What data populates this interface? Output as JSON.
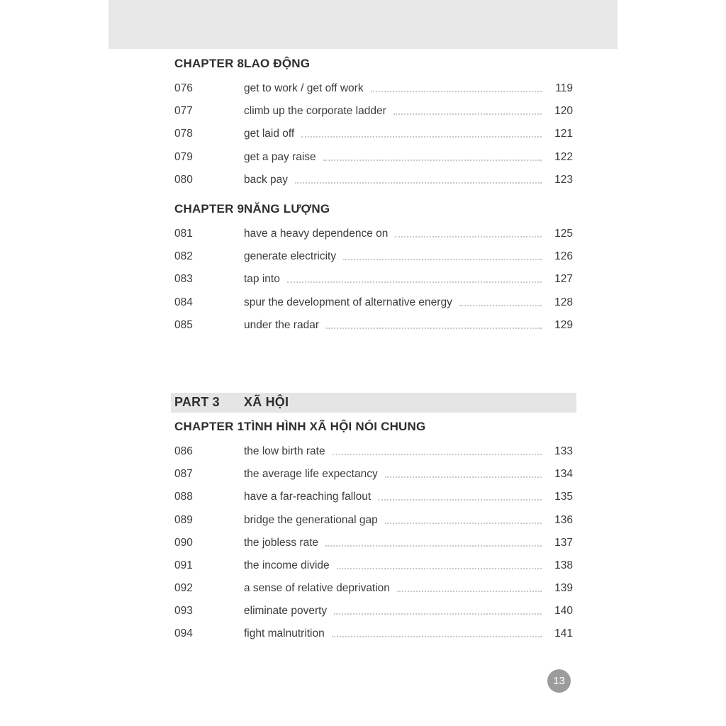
{
  "page": {
    "page_number_badge": "13"
  },
  "colors": {
    "header_block": "#e7e7e7",
    "part_band": "#e5e5e5",
    "badge_circle": "#9c9c9c",
    "body_text": "#3c3c3c",
    "leader_dots": "#c8c8c8"
  },
  "sections": [
    {
      "kind": "chapter",
      "label": "CHAPTER 8",
      "title": "LAO ĐỘNG",
      "items": [
        {
          "num": "076",
          "phrase": "get to work / get off work",
          "page": "119"
        },
        {
          "num": "077",
          "phrase": "climb up the corporate ladder",
          "page": "120"
        },
        {
          "num": "078",
          "phrase": "get laid off",
          "page": "121"
        },
        {
          "num": "079",
          "phrase": "get a pay raise",
          "page": "122"
        },
        {
          "num": "080",
          "phrase": "back pay",
          "page": "123"
        }
      ]
    },
    {
      "kind": "chapter",
      "label": "CHAPTER 9",
      "title": "NĂNG LƯỢNG",
      "items": [
        {
          "num": "081",
          "phrase": "have a heavy dependence on",
          "page": "125"
        },
        {
          "num": "082",
          "phrase": "generate electricity",
          "page": "126"
        },
        {
          "num": "083",
          "phrase": "tap into",
          "page": "127"
        },
        {
          "num": "084",
          "phrase": "spur the development of alternative energy",
          "page": "128"
        },
        {
          "num": "085",
          "phrase": "under the radar",
          "page": "129"
        }
      ]
    },
    {
      "kind": "part",
      "label": "PART 3",
      "title": "XÃ HỘI",
      "items": []
    },
    {
      "kind": "chapter",
      "label": "CHAPTER 1",
      "title": "TÌNH HÌNH XÃ HỘI NÓI CHUNG",
      "items": [
        {
          "num": "086",
          "phrase": "the low birth rate",
          "page": "133"
        },
        {
          "num": "087",
          "phrase": "the average life expectancy",
          "page": "134"
        },
        {
          "num": "088",
          "phrase": "have a far-reaching fallout",
          "page": "135"
        },
        {
          "num": "089",
          "phrase": "bridge the generational gap",
          "page": "136"
        },
        {
          "num": "090",
          "phrase": "the jobless rate",
          "page": "137"
        },
        {
          "num": "091",
          "phrase": "the income divide",
          "page": "138"
        },
        {
          "num": "092",
          "phrase": "a sense of relative deprivation",
          "page": "139"
        },
        {
          "num": "093",
          "phrase": "eliminate poverty",
          "page": "140"
        },
        {
          "num": "094",
          "phrase": "fight malnutrition",
          "page": "141"
        }
      ]
    }
  ]
}
